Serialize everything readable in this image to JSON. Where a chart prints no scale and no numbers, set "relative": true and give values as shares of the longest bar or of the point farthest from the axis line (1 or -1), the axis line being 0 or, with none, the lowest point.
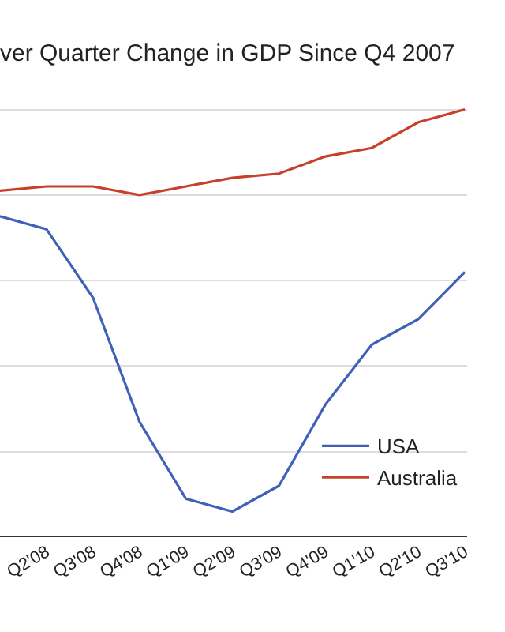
{
  "chart_data": {
    "type": "line",
    "title": "ver Quarter Change in GDP Since Q4 2007",
    "relative": true,
    "categories": [
      null,
      "Q2'08",
      "Q3'08",
      "Q4'08",
      "Q1'09",
      "Q2'09",
      "Q3'09",
      "Q4'09",
      "Q1'10",
      "Q2'10",
      "Q3'10"
    ],
    "series": [
      {
        "name": "USA",
        "color": "#3f62b8",
        "values": [
          0.75,
          0.72,
          0.56,
          0.27,
          0.09,
          0.06,
          0.12,
          0.31,
          0.45,
          0.51,
          0.62
        ]
      },
      {
        "name": "Australia",
        "color": "#c8402a",
        "values": [
          0.81,
          0.82,
          0.82,
          0.8,
          0.82,
          0.84,
          0.85,
          0.89,
          0.91,
          0.97,
          1.0
        ]
      }
    ],
    "grid": "y",
    "legend": "bottom right",
    "marker": "none",
    "line_style": "solid"
  }
}
